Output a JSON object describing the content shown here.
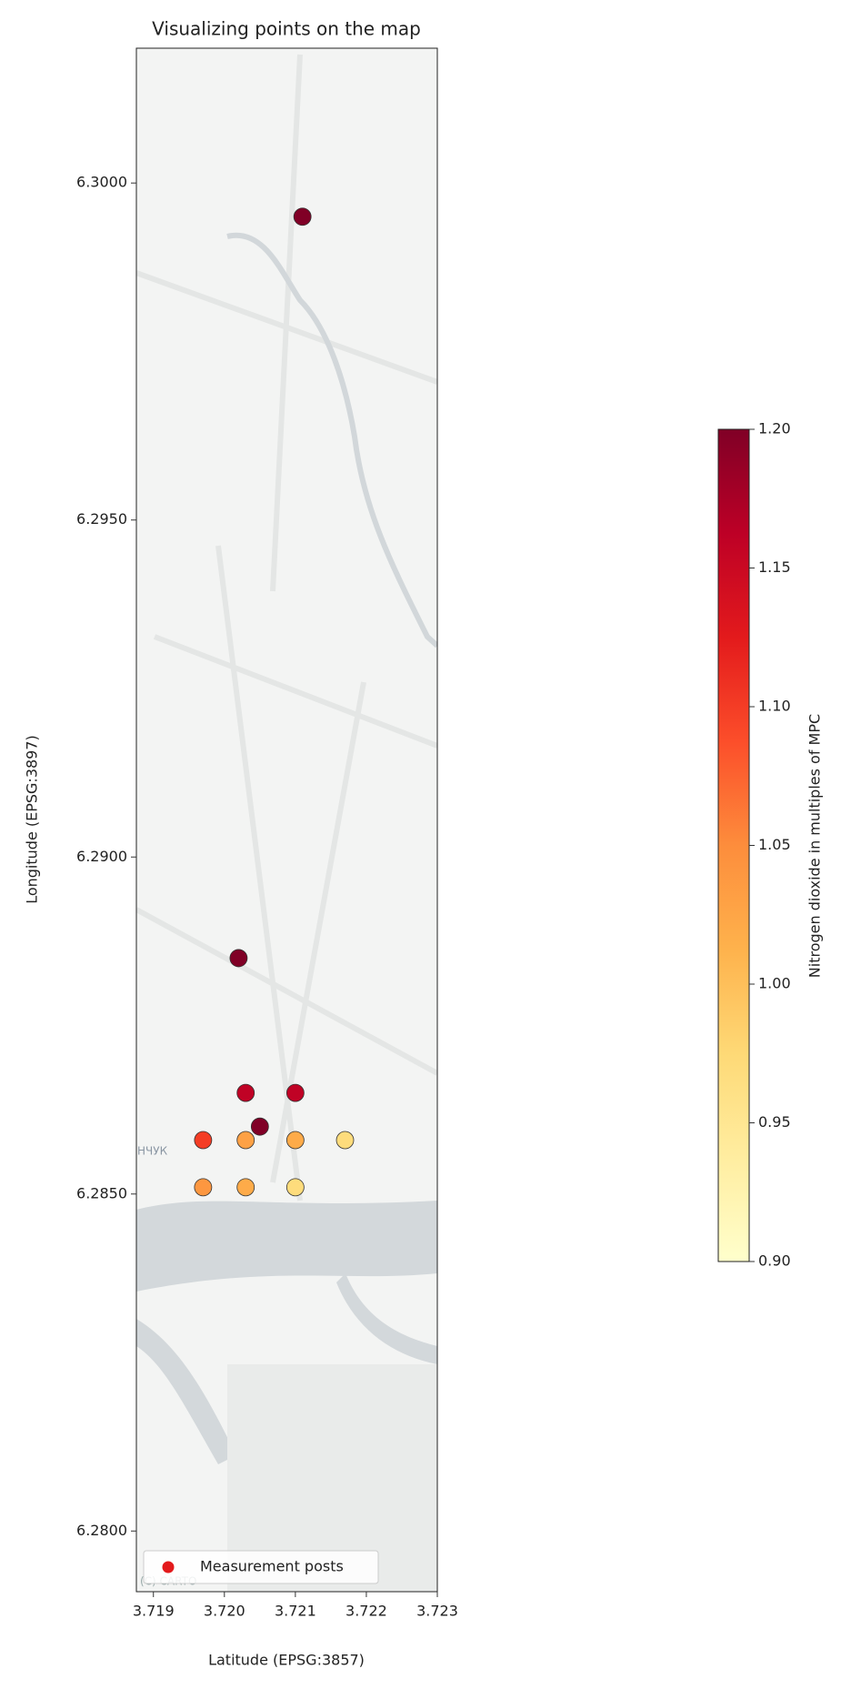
{
  "chart_data": {
    "type": "scatter",
    "title": "Visualizing points on the map",
    "xlabel": "Latitude (EPSG:3857)",
    "ylabel": "Longitude (EPSG:3897)",
    "colorbar_label": "Nitrogen dioxide in multiples of MPC",
    "legend_label": "Measurement posts",
    "legend_color": "#e31a1c",
    "legend_position": "lower left",
    "map_labels": [
      "НЧУК"
    ],
    "attribution": "(C) CARTO",
    "x": [
      3.7211,
      3.7202,
      3.7203,
      3.721,
      3.7205,
      3.7197,
      3.7203,
      3.721,
      3.7217,
      3.7197,
      3.7203,
      3.721
    ],
    "y": [
      6.2995,
      6.2885,
      6.2865,
      6.2865,
      6.286,
      6.2858,
      6.2858,
      6.2858,
      6.2858,
      6.2851,
      6.2851,
      6.2851
    ],
    "c": [
      1.2,
      1.2,
      1.16,
      1.16,
      1.2,
      1.1,
      1.03,
      1.02,
      0.97,
      1.04,
      1.02,
      0.97
    ],
    "colorscale": [
      "#ffffcc",
      "#ffeda0",
      "#fed976",
      "#feb24c",
      "#fd8d3c",
      "#fc4e2a",
      "#e31a1c",
      "#bd0026",
      "#800026"
    ],
    "xlim": [
      3.71876,
      3.723
    ],
    "ylim": [
      6.2791,
      6.302
    ],
    "clim": [
      0.9,
      1.2
    ],
    "xticks": [
      3.719,
      {
        "value": 3.72,
        "label": "3.720"
      },
      3.721,
      3.722,
      3.723
    ],
    "yticks": [
      {
        "value": 6.28,
        "label": "6.2800"
      },
      {
        "value": 6.285,
        "label": "6.2850"
      },
      {
        "value": 6.29,
        "label": "6.2900"
      },
      {
        "value": 6.295,
        "label": "6.2950"
      },
      {
        "value": 6.3,
        "label": "6.3000"
      }
    ],
    "cticks": [
      {
        "value": 0.9,
        "label": "0.90"
      },
      0.95,
      {
        "value": 1.0,
        "label": "1.00"
      },
      1.05,
      {
        "value": 1.1,
        "label": "1.10"
      },
      1.15,
      {
        "value": 1.2,
        "label": "1.20"
      }
    ]
  }
}
